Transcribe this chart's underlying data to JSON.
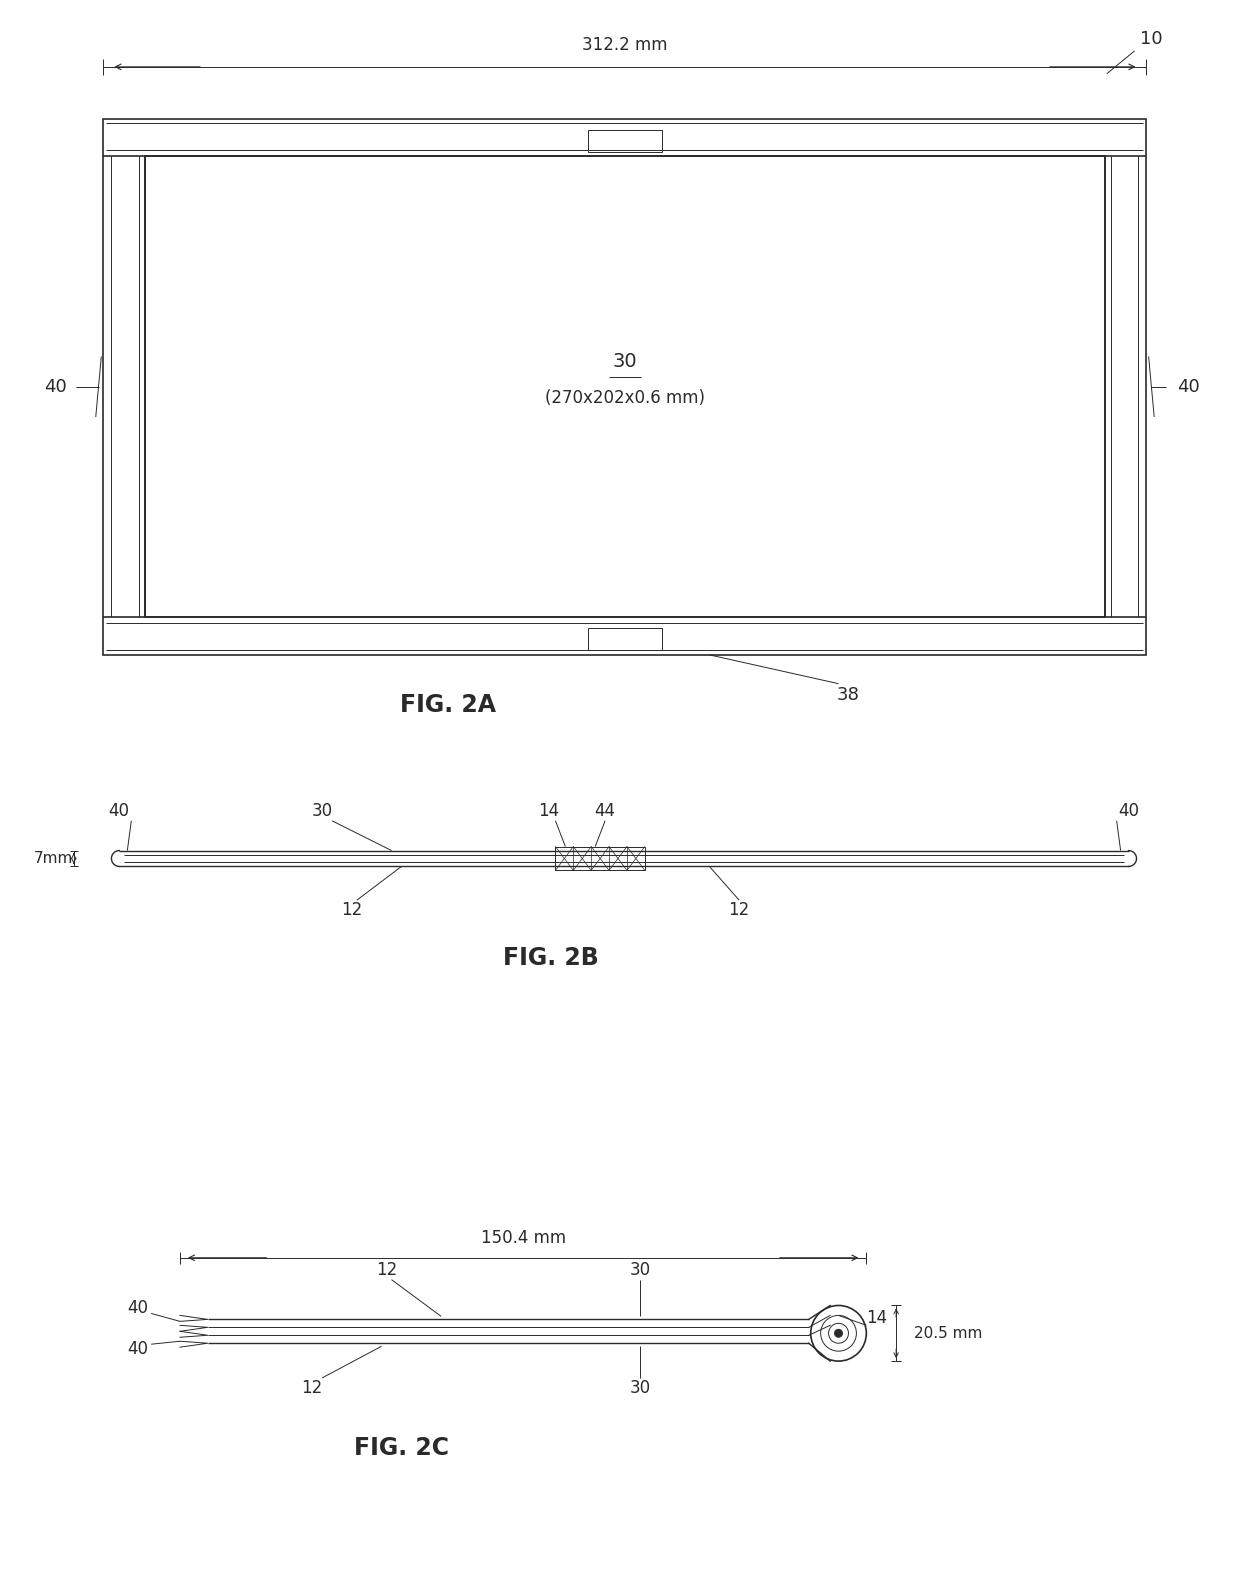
{
  "background_color": "#ffffff",
  "line_color": "#2a2a2a",
  "fig_width": 12.4,
  "fig_height": 15.69,
  "fig2a": {
    "title": "FIG. 2A",
    "dim_label": "312.2 mm",
    "center_label": "30",
    "size_label": "(270x202x0.6 mm)",
    "label_10": "10",
    "label_40_left": "40",
    "label_40_right": "40",
    "label_38": "38"
  },
  "fig2b": {
    "title": "FIG. 2B",
    "label_7mm": "7mm",
    "label_40_left": "40",
    "label_40_right": "40",
    "label_30": "30",
    "label_14": "14",
    "label_44": "44",
    "label_12_left": "12",
    "label_12_right": "12"
  },
  "fig2c": {
    "title": "FIG. 2C",
    "dim_label": "150.4 mm",
    "label_205mm": "20.5 mm",
    "label_12_top": "12",
    "label_12_left": "12",
    "label_30_top": "30",
    "label_30_bottom": "30",
    "label_40_top": "40",
    "label_40_bottom": "40",
    "label_14": "14"
  }
}
